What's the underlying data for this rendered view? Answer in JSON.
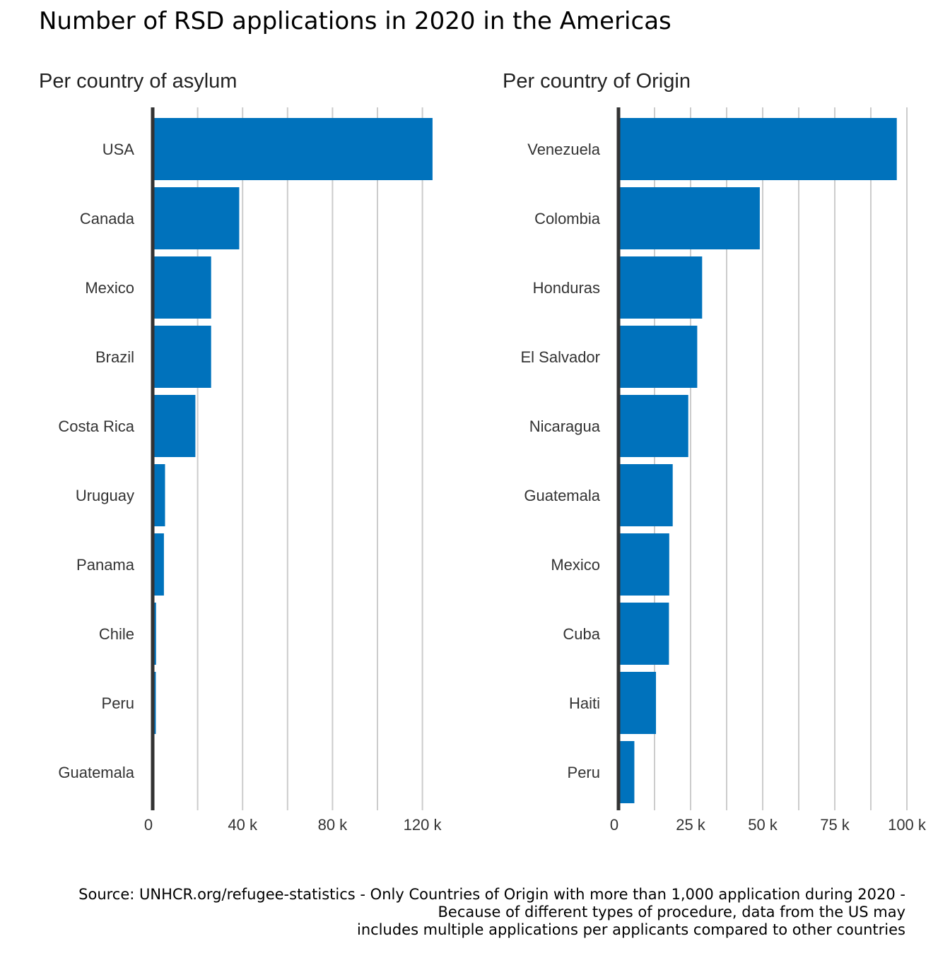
{
  "title": "Number of RSD applications in 2020 in the Americas",
  "caption": {
    "line1": "Source: UNHCR.org/refugee-statistics - Only Countries of Origin with more than 1,000 application during 2020 -",
    "line2": "Because of different types of procedure, data from the US may",
    "line3": "includes multiple applications per applicants compared to other countries"
  },
  "colors": {
    "bar": "#0072bc",
    "grid": "#cccccc",
    "axis": "#333333"
  },
  "chart_data": [
    {
      "type": "bar",
      "orientation": "horizontal",
      "subtitle": "Per country of asylum",
      "categories": [
        "USA",
        "Canada",
        "Mexico",
        "Brazil",
        "Costa Rica",
        "Uruguay",
        "Panama",
        "Chile",
        "Peru",
        "Guatemala"
      ],
      "values": [
        124500,
        38500,
        26000,
        26000,
        19000,
        5500,
        5000,
        1500,
        1400,
        500
      ],
      "xlim": [
        0,
        130000
      ],
      "x_ticks": [
        0,
        40000,
        80000,
        120000
      ],
      "x_tick_labels": [
        "0",
        "40 k",
        "80 k",
        "120 k"
      ],
      "x_minor_ticks": [
        20000,
        60000,
        100000
      ],
      "grid": true
    },
    {
      "type": "bar",
      "orientation": "horizontal",
      "subtitle": "Per country of Origin",
      "categories": [
        "Venezuela",
        "Colombia",
        "Honduras",
        "El Salvador",
        "Nicaragua",
        "Guatemala",
        "Mexico",
        "Cuba",
        "Haiti",
        "Peru"
      ],
      "values": [
        96500,
        49000,
        29000,
        27300,
        24200,
        18800,
        17600,
        17500,
        13000,
        5500
      ],
      "xlim": [
        0,
        101000
      ],
      "x_ticks": [
        0,
        25000,
        50000,
        75000,
        100000
      ],
      "x_tick_labels": [
        "0",
        "25 k",
        "50 k",
        "75 k",
        "100 k"
      ],
      "x_minor_ticks": [
        12500,
        37500,
        62500,
        87500
      ],
      "grid": true
    }
  ]
}
